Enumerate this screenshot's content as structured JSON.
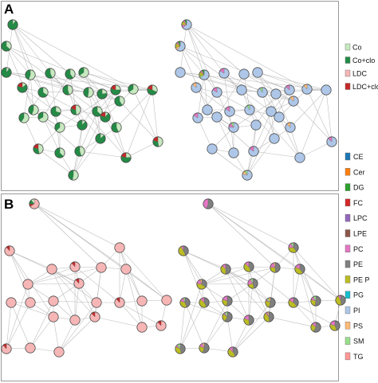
{
  "panels": [
    {
      "id": "A",
      "label": "A"
    },
    {
      "id": "B",
      "label": "B"
    }
  ],
  "legends": {
    "treatment": [
      {
        "label": "Co",
        "color": "#c7e9c0"
      },
      {
        "label": "Co+clo",
        "color": "#238b45"
      },
      {
        "label": "LDC",
        "color": "#f7b6b6"
      },
      {
        "label": "LDC+clo",
        "color": "#c62828"
      }
    ],
    "lipid_class": [
      {
        "label": "CE",
        "color": "#1f77b4"
      },
      {
        "label": "Cer",
        "color": "#ff7f0e"
      },
      {
        "label": "DG",
        "color": "#2ca02c"
      },
      {
        "label": "FC",
        "color": "#d62728"
      },
      {
        "label": "LPC",
        "color": "#9467bd"
      },
      {
        "label": "LPE",
        "color": "#8c564b"
      },
      {
        "label": "PC",
        "color": "#e377c2"
      },
      {
        "label": "PE",
        "color": "#7f7f7f"
      },
      {
        "label": "PE P",
        "color": "#bcbd22"
      },
      {
        "label": "PG",
        "color": "#17becf"
      },
      {
        "label": "PI",
        "color": "#aec7e8"
      },
      {
        "label": "PS",
        "color": "#ffbb78"
      },
      {
        "label": "SM",
        "color": "#98df8a"
      },
      {
        "label": "TG",
        "color": "#ff9896"
      }
    ]
  }
}
